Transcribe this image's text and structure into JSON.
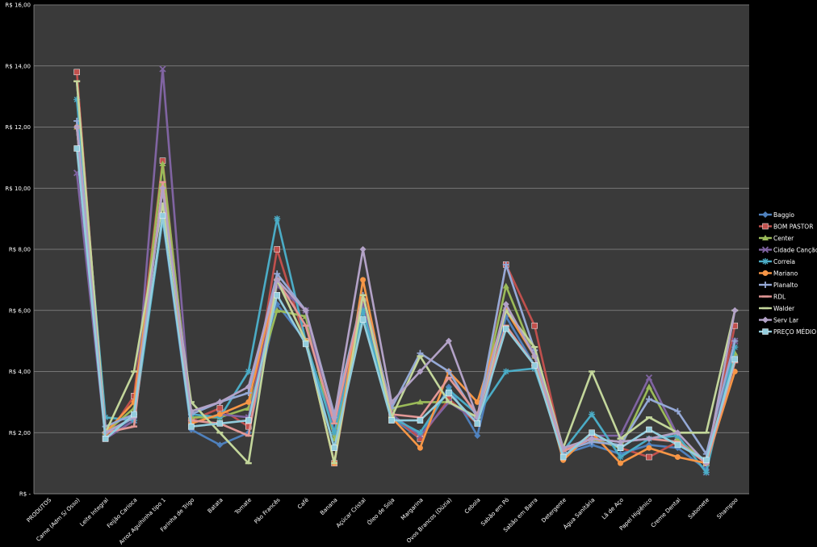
{
  "chart_data": {
    "type": "line",
    "title": "",
    "xlabel": "",
    "ylabel": "",
    "ylim": [
      0,
      16
    ],
    "grid": true,
    "legend_position": "right",
    "background": "#3a3a3a",
    "y_ticks": [
      {
        "value": 0,
        "label": "R$ -"
      },
      {
        "value": 2,
        "label": "R$ 2,00"
      },
      {
        "value": 4,
        "label": "R$ 4,00"
      },
      {
        "value": 6,
        "label": "R$ 6,00"
      },
      {
        "value": 8,
        "label": "R$ 8,00"
      },
      {
        "value": 10,
        "label": "R$ 10,00"
      },
      {
        "value": 12,
        "label": "R$ 12,00"
      },
      {
        "value": 14,
        "label": "R$ 14,00"
      },
      {
        "value": 16,
        "label": "R$ 16,00"
      }
    ],
    "categories": [
      "PRODUTOS",
      "Carne (Adm S/ Osso)",
      "Leite Integral",
      "Feijão Carioca",
      "Arroz Agulhinha tipo 1",
      "Farinha de Trigo",
      "Batata",
      "Tomate",
      "Pão Francês",
      "Café",
      "Banana",
      "Açúcar Cristal",
      "Óleo de Soja",
      "Margarina",
      "Ovos Brancos (Dúzia)",
      "Cebola",
      "Sabão em Pó",
      "Sabão em Barra",
      "Detergente",
      "Água Sanitária",
      "Lã de Aço",
      "Papel Higiênico",
      "Creme Dental",
      "Sabonete",
      "Shampoo"
    ],
    "series": [
      {
        "name": "Baggio",
        "color": "#4f81bd",
        "marker": "diamond",
        "values": [
          null,
          12.0,
          1.9,
          2.5,
          9.0,
          2.1,
          1.6,
          2.0,
          6.2,
          5.0,
          1.5,
          6.0,
          2.5,
          1.8,
          3.5,
          1.9,
          5.8,
          4.2,
          1.3,
          1.6,
          1.3,
          1.6,
          1.5,
          0.8,
          4.5
        ]
      },
      {
        "name": "BOM PASTOR",
        "color": "#c0504d",
        "marker": "square",
        "values": [
          null,
          13.8,
          1.8,
          3.2,
          10.9,
          2.4,
          2.8,
          2.2,
          8.0,
          5.0,
          1.0,
          6.3,
          2.6,
          1.8,
          3.1,
          2.3,
          7.5,
          5.5,
          1.4,
          1.8,
          1.5,
          1.2,
          1.7,
          1.0,
          5.5
        ]
      },
      {
        "name": "Center",
        "color": "#9bbb59",
        "marker": "triangle",
        "values": [
          null,
          12.0,
          2.0,
          2.8,
          10.8,
          2.5,
          2.5,
          2.8,
          6.0,
          5.8,
          1.8,
          6.0,
          2.8,
          3.0,
          3.0,
          2.5,
          6.8,
          4.5,
          1.5,
          1.8,
          1.5,
          3.5,
          1.8,
          1.0,
          4.6
        ]
      },
      {
        "name": "Cidade Canção",
        "color": "#8064a2",
        "marker": "x",
        "values": [
          null,
          10.5,
          1.8,
          2.4,
          13.9,
          2.3,
          2.6,
          2.5,
          6.8,
          6.0,
          2.0,
          6.2,
          2.6,
          1.9,
          3.0,
          2.4,
          6.0,
          4.6,
          1.4,
          1.9,
          1.9,
          3.8,
          1.9,
          0.7,
          5.0
        ]
      },
      {
        "name": "Correia",
        "color": "#4bacc6",
        "marker": "star",
        "values": [
          null,
          12.9,
          2.5,
          2.4,
          9.0,
          2.6,
          2.5,
          4.0,
          9.0,
          5.0,
          2.0,
          6.0,
          2.5,
          2.0,
          3.4,
          2.6,
          4.0,
          4.1,
          1.4,
          2.6,
          1.2,
          1.8,
          1.9,
          0.7,
          4.8
        ]
      },
      {
        "name": "Mariano",
        "color": "#f79646",
        "marker": "circle",
        "values": [
          null,
          12.0,
          2.0,
          3.0,
          10.0,
          2.3,
          2.6,
          3.0,
          7.0,
          5.0,
          1.0,
          7.0,
          2.5,
          1.5,
          4.0,
          3.0,
          6.0,
          4.5,
          1.1,
          2.0,
          1.0,
          1.5,
          1.2,
          1.0,
          4.0
        ]
      },
      {
        "name": "Planalto",
        "color": "#95a9d6",
        "marker": "plus",
        "values": [
          null,
          12.2,
          2.2,
          2.6,
          10.0,
          2.6,
          3.0,
          3.3,
          7.2,
          6.0,
          2.6,
          6.5,
          2.8,
          4.6,
          4.0,
          2.5,
          7.5,
          4.7,
          1.4,
          1.7,
          1.6,
          3.1,
          2.7,
          1.3,
          5.0
        ]
      },
      {
        "name": "RDL",
        "color": "#e39896",
        "marker": "dash",
        "values": [
          null,
          13.5,
          2.0,
          2.2,
          10.2,
          2.4,
          2.3,
          1.9,
          7.0,
          5.5,
          2.3,
          6.5,
          2.6,
          2.5,
          3.8,
          2.6,
          5.5,
          4.2,
          1.4,
          1.8,
          1.7,
          1.8,
          1.7,
          1.0,
          4.3
        ]
      },
      {
        "name": "Walder",
        "color": "#c3d69b",
        "marker": "dash",
        "values": [
          null,
          13.5,
          2.0,
          4.0,
          9.5,
          3.0,
          2.0,
          1.0,
          7.0,
          5.0,
          1.0,
          6.5,
          2.5,
          4.5,
          3.0,
          2.5,
          6.0,
          4.8,
          1.5,
          4.0,
          1.8,
          2.5,
          2.0,
          2.0,
          6.0
        ]
      },
      {
        "name": "Serv Lar",
        "color": "#b3a2c7",
        "marker": "diamond",
        "values": [
          null,
          12.0,
          2.0,
          2.5,
          10.0,
          2.7,
          3.0,
          3.5,
          7.0,
          6.0,
          2.5,
          8.0,
          3.0,
          4.0,
          5.0,
          2.5,
          6.2,
          4.5,
          1.5,
          1.8,
          1.7,
          1.8,
          2.0,
          1.0,
          6.0
        ]
      },
      {
        "name": "PREÇO MÉDIO",
        "color": "#93cddd",
        "marker": "square",
        "values": [
          null,
          11.3,
          1.8,
          2.6,
          9.1,
          2.2,
          2.3,
          2.4,
          6.5,
          4.9,
          1.5,
          5.7,
          2.4,
          2.4,
          3.3,
          2.3,
          5.4,
          4.2,
          1.2,
          2.0,
          1.5,
          2.1,
          1.6,
          1.1,
          4.4
        ]
      }
    ]
  }
}
